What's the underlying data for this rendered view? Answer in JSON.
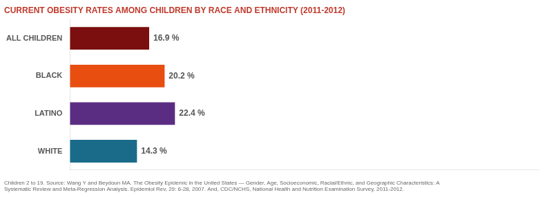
{
  "chart_data": {
    "type": "bar",
    "orientation": "horizontal",
    "title": "CURRENT OBESITY RATES AMONG CHILDREN BY RACE AND ETHNICITY (2011-2012)",
    "footnote": "Children 2 to 19. Source: Wang Y and Beydoun MA. The Obesity Epidemic in the United States — Gender, Age, Socioeconomic, Racial/Ethnic, and Geographic Characteristics: A\nSystematic Review and Meta-Regression Analysis. Epidemiol Rev, 29: 6-28, 2007. And, CDC/NCHS, National Health and Nutrition Examination Survey, 2011-2012.",
    "categories": [
      "ALL CHILDREN",
      "BLACK",
      "LATINO",
      "WHITE"
    ],
    "values": [
      16.9,
      20.2,
      22.4,
      14.3
    ],
    "value_labels": [
      "16.9 %",
      "20.2 %",
      "22.4 %",
      "14.3 %"
    ],
    "colors": [
      "#7b0e0e",
      "#e84e10",
      "#5b2d82",
      "#1a6b8a"
    ],
    "xlim": [
      0,
      100
    ],
    "data_labels": true,
    "tick_labels": "y",
    "grid": false,
    "legend": false
  }
}
